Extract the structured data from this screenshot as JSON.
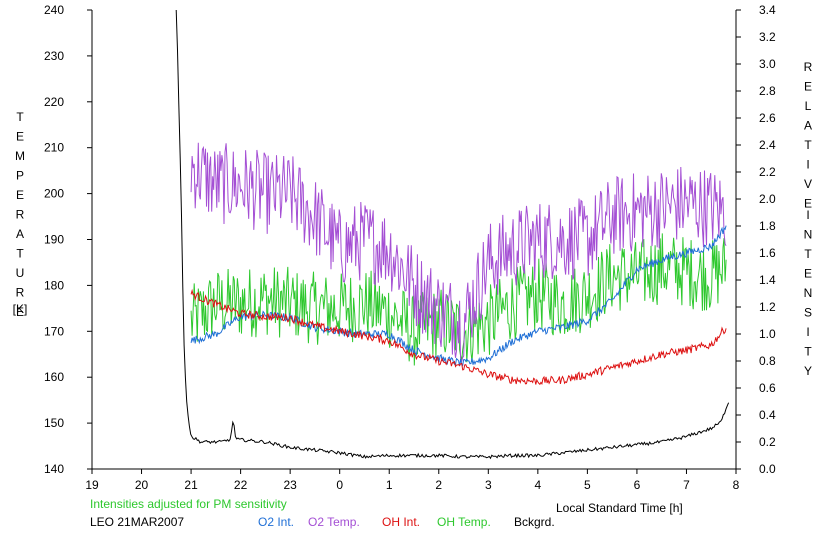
{
  "chart_data": {
    "type": "line",
    "left_axis": {
      "label_letters": [
        "T",
        "E",
        "M",
        "P",
        "E",
        "R",
        "A",
        "T",
        "U",
        "R",
        "E"
      ],
      "unit": "[K]",
      "ylim": [
        140,
        240
      ],
      "ticks": [
        "140",
        "150",
        "160",
        "170",
        "180",
        "190",
        "200",
        "210",
        "220",
        "230",
        "240"
      ]
    },
    "right_axis": {
      "label_letters": [
        "R",
        "E",
        "L",
        "A",
        "T",
        "I",
        "V",
        "E"
      ],
      "label_letters_2": [
        "I",
        "N",
        "T",
        "E",
        "N",
        "S",
        "I",
        "T",
        "Y"
      ],
      "ylim": [
        0.0,
        3.4
      ],
      "ticks": [
        "0.0",
        "0.2",
        "0.4",
        "0.6",
        "0.8",
        "1.0",
        "1.2",
        "1.4",
        "1.6",
        "1.8",
        "2.0",
        "2.2",
        "2.4",
        "2.6",
        "2.8",
        "3.0",
        "3.2",
        "3.4"
      ]
    },
    "x_axis": {
      "label": "Local Standard Time [h]",
      "ticks": [
        "19",
        "20",
        "21",
        "22",
        "23",
        "0",
        "1",
        "2",
        "3",
        "4",
        "5",
        "6",
        "7",
        "8"
      ]
    },
    "note": "Intensities adjusted for PM sensitivity",
    "station": "LEO 21MAR2007",
    "colors": {
      "o2_int": "#1f6fd6",
      "o2_temp": "#a44fd4",
      "oh_int": "#dd1111",
      "oh_temp": "#2ec82e",
      "bckgrd": "#000000",
      "note": "#2ec82e"
    },
    "series": [
      {
        "key": "o2_int",
        "name": "O2 Int.",
        "axis": "right",
        "points": [
          [
            21.0,
            0.95
          ],
          [
            21.5,
            1.0
          ],
          [
            21.8,
            1.08
          ],
          [
            22.0,
            1.13
          ],
          [
            22.5,
            1.14
          ],
          [
            23.0,
            1.12
          ],
          [
            23.5,
            1.05
          ],
          [
            24.0,
            1.02
          ],
          [
            24.3,
            1.0
          ],
          [
            25.0,
            1.0
          ],
          [
            25.5,
            0.88
          ],
          [
            26.0,
            0.82
          ],
          [
            26.5,
            0.78
          ],
          [
            27.0,
            0.82
          ],
          [
            27.5,
            0.95
          ],
          [
            28.0,
            1.02
          ],
          [
            28.5,
            1.05
          ],
          [
            29.0,
            1.1
          ],
          [
            29.5,
            1.25
          ],
          [
            30.0,
            1.48
          ],
          [
            30.5,
            1.55
          ],
          [
            31.0,
            1.6
          ],
          [
            31.5,
            1.65
          ],
          [
            31.8,
            1.8
          ]
        ]
      },
      {
        "key": "o2_temp",
        "name": "O2 Temp.",
        "axis": "left",
        "points": [
          [
            21.0,
            206
          ],
          [
            21.5,
            202
          ],
          [
            22.0,
            202
          ],
          [
            22.5,
            200
          ],
          [
            23.0,
            200
          ],
          [
            23.5,
            195
          ],
          [
            24.0,
            188
          ],
          [
            24.5,
            190
          ],
          [
            25.0,
            188
          ],
          [
            25.5,
            180
          ],
          [
            26.0,
            175
          ],
          [
            26.5,
            172
          ],
          [
            27.0,
            185
          ],
          [
            27.5,
            188
          ],
          [
            28.0,
            190
          ],
          [
            28.5,
            190
          ],
          [
            29.0,
            190
          ],
          [
            29.5,
            195
          ],
          [
            30.0,
            196
          ],
          [
            30.5,
            197
          ],
          [
            31.0,
            198
          ],
          [
            31.5,
            197
          ],
          [
            31.8,
            196
          ]
        ]
      },
      {
        "key": "oh_int",
        "name": "OH Int.",
        "axis": "right",
        "points": [
          [
            21.0,
            1.3
          ],
          [
            21.5,
            1.22
          ],
          [
            22.0,
            1.15
          ],
          [
            22.5,
            1.13
          ],
          [
            23.0,
            1.12
          ],
          [
            23.5,
            1.06
          ],
          [
            24.0,
            1.02
          ],
          [
            24.3,
            1.0
          ],
          [
            25.0,
            0.95
          ],
          [
            25.5,
            0.85
          ],
          [
            26.0,
            0.8
          ],
          [
            26.5,
            0.76
          ],
          [
            27.0,
            0.7
          ],
          [
            27.5,
            0.66
          ],
          [
            28.0,
            0.65
          ],
          [
            28.5,
            0.66
          ],
          [
            29.0,
            0.7
          ],
          [
            29.5,
            0.75
          ],
          [
            30.0,
            0.8
          ],
          [
            30.5,
            0.85
          ],
          [
            31.0,
            0.88
          ],
          [
            31.5,
            0.92
          ],
          [
            31.8,
            1.05
          ]
        ]
      },
      {
        "key": "oh_temp",
        "name": "OH Temp.",
        "axis": "left",
        "points": [
          [
            21.0,
            172
          ],
          [
            21.5,
            176
          ],
          [
            22.0,
            176
          ],
          [
            22.5,
            177
          ],
          [
            23.0,
            176
          ],
          [
            23.5,
            175
          ],
          [
            24.0,
            175
          ],
          [
            24.5,
            176
          ],
          [
            25.0,
            174
          ],
          [
            25.5,
            170
          ],
          [
            26.0,
            172
          ],
          [
            26.5,
            170
          ],
          [
            27.0,
            172
          ],
          [
            27.5,
            176
          ],
          [
            28.0,
            178
          ],
          [
            28.5,
            176
          ],
          [
            29.0,
            178
          ],
          [
            29.5,
            182
          ],
          [
            30.0,
            182
          ],
          [
            30.5,
            184
          ],
          [
            31.0,
            183
          ],
          [
            31.5,
            182
          ],
          [
            31.8,
            184
          ]
        ]
      },
      {
        "key": "bckgrd",
        "name": "Bckgrd.",
        "axis": "right",
        "points": [
          [
            20.7,
            3.5
          ],
          [
            20.8,
            2.0
          ],
          [
            20.85,
            1.0
          ],
          [
            20.9,
            0.55
          ],
          [
            20.95,
            0.35
          ],
          [
            21.0,
            0.24
          ],
          [
            21.2,
            0.2
          ],
          [
            21.6,
            0.2
          ],
          [
            21.8,
            0.22
          ],
          [
            21.85,
            0.38
          ],
          [
            21.9,
            0.22
          ],
          [
            22.5,
            0.2
          ],
          [
            23.0,
            0.16
          ],
          [
            23.5,
            0.14
          ],
          [
            24.0,
            0.12
          ],
          [
            24.5,
            0.09
          ],
          [
            25.0,
            0.1
          ],
          [
            25.5,
            0.1
          ],
          [
            26.0,
            0.1
          ],
          [
            26.5,
            0.09
          ],
          [
            27.0,
            0.09
          ],
          [
            27.5,
            0.1
          ],
          [
            28.0,
            0.1
          ],
          [
            28.5,
            0.12
          ],
          [
            29.0,
            0.14
          ],
          [
            29.5,
            0.16
          ],
          [
            30.0,
            0.18
          ],
          [
            30.5,
            0.2
          ],
          [
            31.0,
            0.24
          ],
          [
            31.5,
            0.3
          ],
          [
            31.7,
            0.35
          ],
          [
            31.85,
            0.5
          ]
        ]
      }
    ],
    "x_range": [
      19,
      32
    ],
    "grid": false,
    "legend_placement": "bottom"
  }
}
